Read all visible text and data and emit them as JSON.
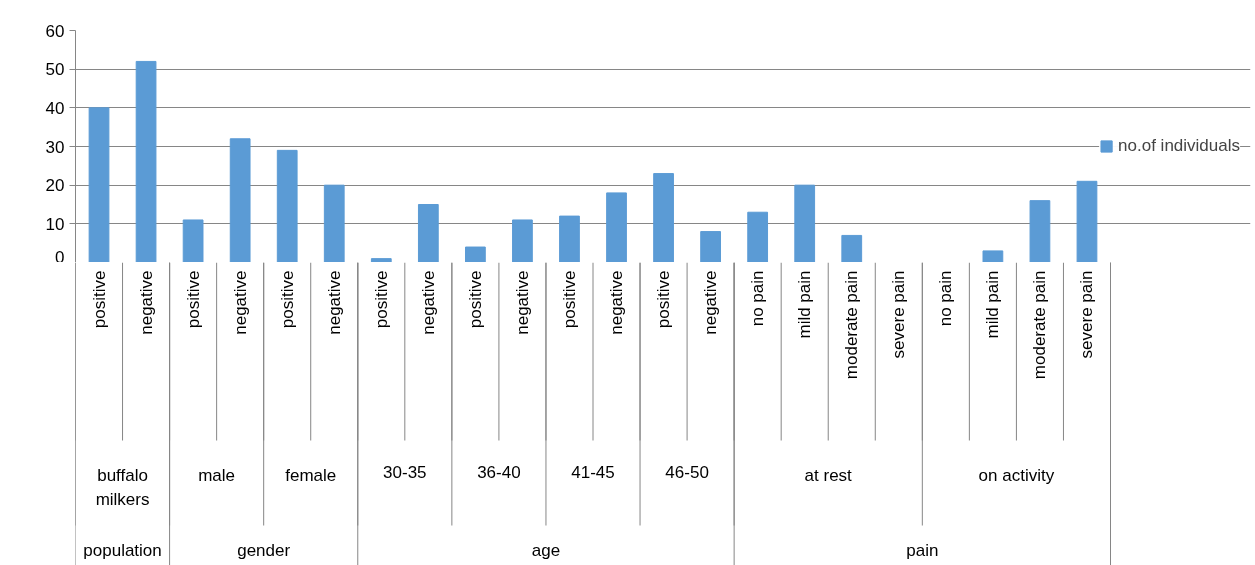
{
  "chart_data": {
    "type": "bar",
    "categories": [
      "positive",
      "negative",
      "positive",
      "negative",
      "positive",
      "negative",
      "positive",
      "negative",
      "positive",
      "negative",
      "positive",
      "negative",
      "positive",
      "negative",
      "no pain",
      "mild pain",
      "moderate pain",
      "severe pain",
      "no pain",
      "mild pain",
      "moderate pain",
      "severe pain"
    ],
    "series": [
      {
        "name": "no.of individuals",
        "color": "#5b9bd5",
        "values": [
          40,
          52,
          11,
          32,
          29,
          20,
          1,
          15,
          4,
          11,
          12,
          18,
          23,
          8,
          13,
          20,
          7,
          0,
          0,
          3,
          16,
          21
        ]
      }
    ],
    "annotations": [
      "buffalo milkers",
      "male",
      "female",
      "30-35",
      "36-40",
      "41-45",
      "46-50",
      "at rest",
      "on activity",
      "population",
      "gender",
      "age",
      "pain"
    ],
    "ylim": [
      0,
      60
    ],
    "yticks": [
      0,
      10,
      20,
      30,
      40,
      50,
      60
    ],
    "grid": "y",
    "legend": "right"
  }
}
